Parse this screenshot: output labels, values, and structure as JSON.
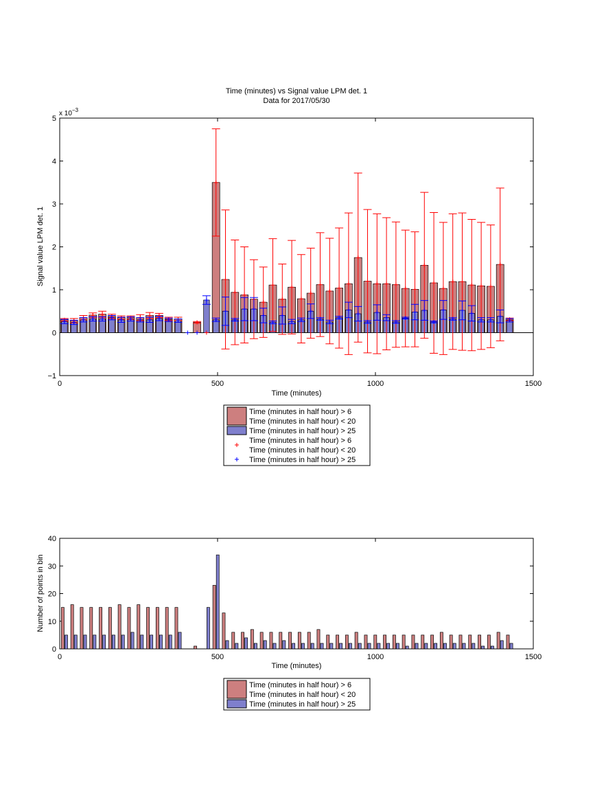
{
  "chart_data": [
    {
      "type": "bar",
      "title": [
        "Time (minutes) vs Signal value LPM det. 1",
        "Data for 2017/05/30"
      ],
      "xlabel": "Time (minutes)",
      "ylabel": "Signal value LPM det. 1",
      "y_multiplier": "x 10",
      "y_multiplier_exp": "−3",
      "xlim": [
        0,
        1500
      ],
      "ylim": [
        -1,
        5
      ],
      "xticks": [
        0,
        500,
        1000,
        1500
      ],
      "yticks": [
        -1,
        0,
        1,
        2,
        3,
        4,
        5
      ],
      "legend": {
        "placement": "below",
        "entries": [
          {
            "kind": "patch",
            "color": "#cd7f7f",
            "lines": [
              "Time (minutes in half hour) > 6",
              "Time (minutes in half hour) < 20"
            ]
          },
          {
            "kind": "patch",
            "color": "#7f7fcd",
            "lines": [
              "Time (minutes in half hour) > 25"
            ]
          },
          {
            "kind": "marker",
            "color": "#ff0000",
            "lines": [
              "Time (minutes in half hour) > 6",
              "Time (minutes in half hour) < 20"
            ]
          },
          {
            "kind": "marker",
            "color": "#0000ff",
            "lines": [
              "Time (minutes in half hour) > 25"
            ]
          }
        ]
      },
      "x": [
        15,
        45,
        75,
        105,
        135,
        165,
        195,
        225,
        255,
        285,
        315,
        345,
        375,
        405,
        435,
        465,
        495,
        525,
        555,
        585,
        615,
        645,
        675,
        705,
        735,
        765,
        795,
        825,
        855,
        885,
        915,
        945,
        975,
        1005,
        1035,
        1065,
        1095,
        1125,
        1155,
        1185,
        1215,
        1245,
        1275,
        1305,
        1335,
        1365,
        1395,
        1425
      ],
      "series": [
        {
          "name": "Time (minutes in half hour) > 6 / < 20",
          "color": "#cd7f7f",
          "err_color": "#ff0000",
          "values": [
            0.3,
            0.28,
            0.35,
            0.41,
            0.43,
            0.38,
            0.35,
            0.35,
            0.35,
            0.4,
            0.4,
            0.32,
            0.32,
            null,
            0.24,
            0.0,
            3.5,
            1.24,
            0.94,
            0.88,
            0.78,
            0.71,
            1.11,
            0.78,
            1.06,
            0.79,
            0.92,
            1.12,
            0.97,
            1.04,
            1.14,
            1.75,
            1.2,
            1.14,
            1.14,
            1.12,
            1.03,
            1.01,
            1.57,
            1.16,
            1.03,
            1.19,
            1.19,
            1.11,
            1.09,
            1.08,
            1.59,
            0.31
          ],
          "err": [
            0.03,
            0.05,
            0.05,
            0.05,
            0.07,
            0.05,
            0.04,
            0.04,
            0.07,
            0.07,
            0.05,
            0.04,
            0.04,
            null,
            0.02,
            0.0,
            1.25,
            1.62,
            1.22,
            1.12,
            0.92,
            0.82,
            1.08,
            0.82,
            1.09,
            1.03,
            1.05,
            1.21,
            1.23,
            1.4,
            1.65,
            1.97,
            1.67,
            1.63,
            1.54,
            1.46,
            1.36,
            1.34,
            1.7,
            1.64,
            1.54,
            1.58,
            1.6,
            1.53,
            1.48,
            1.43,
            1.78,
            0.03
          ]
        },
        {
          "name": "Time (minutes in half hour) > 25",
          "color": "#7f7fcd",
          "err_color": "#0000ff",
          "values": [
            0.26,
            0.24,
            0.3,
            0.32,
            0.32,
            0.35,
            0.3,
            0.32,
            0.3,
            0.3,
            0.33,
            0.3,
            0.28,
            0.0,
            0.0,
            0.76,
            0.3,
            0.5,
            0.3,
            0.55,
            0.55,
            0.4,
            0.24,
            0.4,
            0.26,
            0.3,
            0.5,
            0.32,
            0.25,
            0.35,
            0.53,
            0.44,
            0.25,
            0.47,
            0.35,
            0.25,
            0.34,
            0.48,
            0.52,
            0.25,
            0.53,
            0.32,
            0.52,
            0.45,
            0.3,
            0.3,
            0.38,
            0.29
          ],
          "err": [
            0.05,
            0.05,
            0.05,
            0.05,
            0.05,
            0.05,
            0.06,
            0.05,
            0.05,
            0.06,
            0.05,
            0.04,
            0.04,
            0.0,
            0.0,
            0.1,
            0.04,
            0.33,
            0.03,
            0.27,
            0.27,
            0.17,
            0.03,
            0.2,
            0.05,
            0.04,
            0.17,
            0.03,
            0.04,
            0.03,
            0.18,
            0.17,
            0.03,
            0.18,
            0.07,
            0.03,
            0.02,
            0.18,
            0.23,
            0.02,
            0.22,
            0.03,
            0.22,
            0.18,
            0.05,
            0.05,
            0.15,
            0.04
          ]
        }
      ]
    },
    {
      "type": "bar",
      "xlabel": "Time (minutes)",
      "ylabel": "Number of points in bin",
      "xlim": [
        0,
        1500
      ],
      "ylim": [
        0,
        40
      ],
      "xticks": [
        0,
        500,
        1000,
        1500
      ],
      "yticks": [
        0,
        10,
        20,
        30,
        40
      ],
      "legend": {
        "placement": "below",
        "entries": [
          {
            "kind": "patch",
            "color": "#cd7f7f",
            "lines": [
              "Time (minutes in half hour) > 6",
              "Time (minutes in half hour) < 20"
            ]
          },
          {
            "kind": "patch",
            "color": "#7f7fcd",
            "lines": [
              "Time (minutes in half hour) > 25"
            ]
          }
        ]
      },
      "x": [
        15,
        45,
        75,
        105,
        135,
        165,
        195,
        225,
        255,
        285,
        315,
        345,
        375,
        405,
        435,
        465,
        495,
        525,
        555,
        585,
        615,
        645,
        675,
        705,
        735,
        765,
        795,
        825,
        855,
        885,
        915,
        945,
        975,
        1005,
        1035,
        1065,
        1095,
        1125,
        1155,
        1185,
        1215,
        1245,
        1275,
        1305,
        1335,
        1365,
        1395,
        1425
      ],
      "series": [
        {
          "name": "Time (minutes in half hour) > 6 / < 20",
          "color": "#cd7f7f",
          "values": [
            15,
            16,
            15,
            15,
            15,
            15,
            16,
            15,
            16,
            15,
            15,
            15,
            15,
            0,
            1,
            0,
            23,
            13,
            6,
            6,
            7,
            6,
            6,
            6,
            6,
            6,
            6,
            7,
            5,
            5,
            5,
            6,
            5,
            5,
            5,
            5,
            5,
            5,
            5,
            5,
            6,
            5,
            5,
            5,
            5,
            5,
            6,
            5
          ]
        },
        {
          "name": "Time (minutes in half hour) > 25",
          "color": "#7f7fcd",
          "values": [
            5,
            5,
            5,
            5,
            5,
            5,
            5,
            6,
            5,
            5,
            5,
            5,
            6,
            0,
            0,
            15,
            34,
            3,
            2,
            4,
            2,
            3,
            2,
            3,
            2,
            2,
            2,
            2,
            2,
            2,
            2,
            2,
            2,
            2,
            2,
            2,
            1,
            2,
            2,
            2,
            2,
            2,
            2,
            2,
            1,
            1,
            3,
            2
          ]
        }
      ]
    }
  ]
}
